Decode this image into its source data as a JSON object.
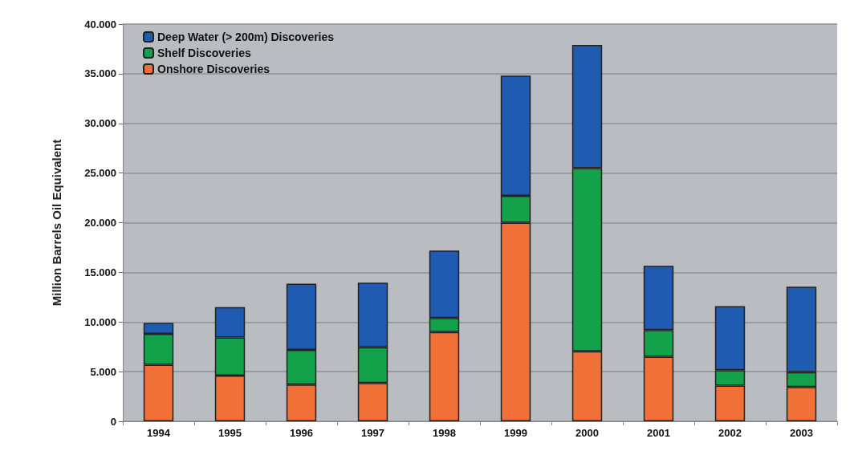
{
  "chart_data": {
    "type": "bar",
    "stacked": true,
    "ylabel": "Million Barrels Oil Equivalent",
    "categories": [
      "1994",
      "1995",
      "1996",
      "1997",
      "1998",
      "1999",
      "2000",
      "2001",
      "2002",
      "2003"
    ],
    "series": [
      {
        "name": "Onshore Discoveries",
        "color": "#f07038",
        "values": [
          5700,
          4600,
          3700,
          3850,
          9000,
          20000,
          7050,
          6500,
          3600,
          3450
        ]
      },
      {
        "name": "Shelf Discoveries",
        "color": "#13a24a",
        "values": [
          3100,
          3850,
          3500,
          3600,
          1400,
          2700,
          18450,
          2700,
          1550,
          1500
        ]
      },
      {
        "name": "Deep Water (> 200m) Discoveries",
        "color": "#1f5bb0",
        "values": [
          1100,
          3050,
          6650,
          6500,
          6800,
          12100,
          12400,
          6450,
          6450,
          8600
        ]
      }
    ],
    "ylim": [
      0,
      40000
    ],
    "yticks": [
      0,
      {
        "value": 5000,
        "label": "5.000"
      },
      {
        "value": 10000,
        "label": "10.000"
      },
      {
        "value": 15000,
        "label": "15.000"
      },
      {
        "value": 20000,
        "label": "20.000"
      },
      {
        "value": 25000,
        "label": "25.000"
      },
      {
        "value": 30000,
        "label": "30.000"
      },
      {
        "value": 35000,
        "label": "35.000"
      },
      {
        "value": 40000,
        "label": "40.000"
      }
    ],
    "grid": "y",
    "legend": "top left"
  }
}
